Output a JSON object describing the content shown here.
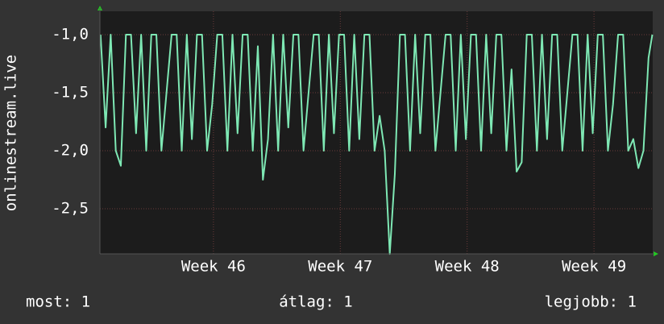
{
  "chart_data": {
    "type": "line",
    "y_label": "onlinestream.live",
    "xlim": [
      45.105,
      49.463
    ],
    "ylim": [
      -2.889,
      -0.799
    ],
    "xticks": [
      {
        "value": 46,
        "label": "Week 46"
      },
      {
        "value": 47,
        "label": "Week 47"
      },
      {
        "value": 48,
        "label": "Week 48"
      },
      {
        "value": 49,
        "label": "Week 49"
      }
    ],
    "yticks": [
      {
        "value": -1.0,
        "label": "-1,0"
      },
      {
        "value": -1.5,
        "label": "-1,5"
      },
      {
        "value": -2.0,
        "label": "-2,0"
      },
      {
        "value": -2.5,
        "label": "-2,5"
      }
    ],
    "grid": true,
    "series": [
      {
        "color": "#7ee8b4",
        "x": [
          45.11,
          45.15,
          45.19,
          45.23,
          45.27,
          45.31,
          45.35,
          45.39,
          45.43,
          45.47,
          45.51,
          45.55,
          45.59,
          45.63,
          45.67,
          45.71,
          45.75,
          45.79,
          45.83,
          45.87,
          45.91,
          45.95,
          45.99,
          46.03,
          46.07,
          46.11,
          46.15,
          46.19,
          46.23,
          46.27,
          46.31,
          46.35,
          46.39,
          46.43,
          46.47,
          46.51,
          46.55,
          46.59,
          46.63,
          46.67,
          46.71,
          46.75,
          46.79,
          46.83,
          46.87,
          46.91,
          46.95,
          46.99,
          47.03,
          47.07,
          47.11,
          47.15,
          47.19,
          47.23,
          47.27,
          47.31,
          47.35,
          47.39,
          47.43,
          47.47,
          47.51,
          47.55,
          47.59,
          47.63,
          47.67,
          47.71,
          47.75,
          47.79,
          47.83,
          47.87,
          47.91,
          47.95,
          47.99,
          48.03,
          48.07,
          48.11,
          48.15,
          48.19,
          48.23,
          48.27,
          48.31,
          48.35,
          48.39,
          48.43,
          48.47,
          48.51,
          48.55,
          48.59,
          48.63,
          48.67,
          48.71,
          48.75,
          48.79,
          48.83,
          48.87,
          48.91,
          48.95,
          48.99,
          49.03,
          49.07,
          49.11,
          49.15,
          49.19,
          49.23,
          49.27,
          49.31,
          49.35,
          49.39,
          49.43,
          49.46
        ],
        "values": [
          -1,
          -1.8,
          -1,
          -2,
          -2.13,
          -1,
          -1,
          -1.85,
          -1,
          -2,
          -1,
          -1,
          -2,
          -1.5,
          -1,
          -1,
          -2,
          -1,
          -1.9,
          -1,
          -1,
          -2,
          -1.6,
          -1,
          -1,
          -2,
          -1,
          -1.85,
          -1,
          -1,
          -2,
          -1.1,
          -2.25,
          -1.9,
          -1,
          -2,
          -1,
          -1.8,
          -1,
          -1,
          -2,
          -1.5,
          -1,
          -1,
          -2,
          -1,
          -1.85,
          -1,
          -1,
          -2,
          -1,
          -1.9,
          -1,
          -1,
          -2,
          -1.7,
          -2,
          -2.89,
          -2.2,
          -1,
          -1,
          -2,
          -1,
          -1.85,
          -1,
          -1,
          -2,
          -1.5,
          -1,
          -1,
          -2,
          -1,
          -1.9,
          -1,
          -1,
          -2,
          -1,
          -1.85,
          -1,
          -1,
          -2,
          -1.3,
          -2.18,
          -2.1,
          -1,
          -1,
          -2,
          -1,
          -1.9,
          -1,
          -1,
          -2,
          -1.5,
          -1,
          -1,
          -2,
          -1,
          -1.85,
          -1,
          -1,
          -2,
          -1.6,
          -1,
          -1,
          -2,
          -1.9,
          -2.15,
          -2,
          -1.2,
          -1
        ]
      }
    ],
    "footer": [
      "most: 1",
      "átlag: 1",
      "legjobb: 1"
    ]
  }
}
